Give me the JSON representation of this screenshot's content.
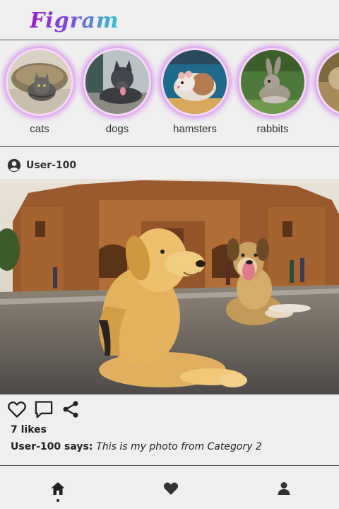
{
  "app": {
    "logo_text": "Figram"
  },
  "stories": [
    {
      "label": "cats",
      "icon": "cat-photo"
    },
    {
      "label": "dogs",
      "icon": "dog-photo"
    },
    {
      "label": "hamsters",
      "icon": "hamster-photo"
    },
    {
      "label": "rabbits",
      "icon": "rabbit-photo"
    }
  ],
  "post": {
    "username": "User-100",
    "image_icon": "dogs-photo",
    "likes_text": "7 likes",
    "caption_user": "User-100",
    "caption_says": " says: ",
    "caption_text": "This is my photo from Category 2"
  },
  "nav": {
    "items": [
      "home-icon",
      "heart-icon",
      "user-icon"
    ],
    "active": "home"
  },
  "colors": {
    "logo_gradient": [
      "#a020c8",
      "#7a4fe0",
      "#2ec9c9"
    ],
    "story_ring": "#d890ee",
    "background": "#efefef"
  }
}
